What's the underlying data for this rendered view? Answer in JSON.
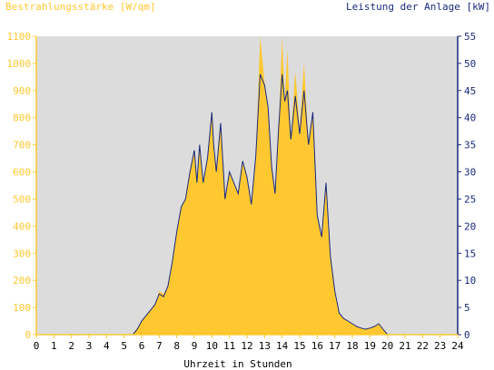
{
  "chart_data": {
    "type": "area",
    "left_axis_label": "Bestrahlungsstärke [W/qm]",
    "right_axis_label": "Leistung der Anlage [kW]",
    "xlabel": "Uhrzeit in Stunden",
    "xlim": [
      0,
      24
    ],
    "x_ticks": [
      0,
      1,
      2,
      3,
      4,
      5,
      6,
      7,
      8,
      9,
      10,
      11,
      12,
      13,
      14,
      15,
      16,
      17,
      18,
      19,
      20,
      21,
      22,
      23,
      24
    ],
    "ylim_left": [
      0,
      1100
    ],
    "y_ticks_left": [
      0,
      100,
      200,
      300,
      400,
      500,
      600,
      700,
      800,
      900,
      1000,
      1100
    ],
    "ylim_right": [
      0,
      55
    ],
    "y_ticks_right": [
      0,
      5,
      10,
      15,
      20,
      25,
      30,
      35,
      40,
      45,
      50,
      55
    ],
    "grid": false,
    "colors": {
      "irradiance": "#ffc830",
      "power": "#1a2a7a",
      "plot_bg": "#dcdcdc",
      "left_axis_text": "#ffc830",
      "right_axis_text": "#1a2a7a",
      "x_axis_text": "#000000"
    },
    "series": [
      {
        "name": "Bestrahlungsstärke [W/qm]",
        "axis": "left",
        "x": [
          0,
          5.5,
          5.75,
          6.0,
          6.25,
          6.5,
          6.75,
          7.0,
          7.25,
          7.5,
          7.75,
          8.0,
          8.25,
          8.5,
          8.75,
          9.0,
          9.15,
          9.3,
          9.5,
          9.75,
          10.0,
          10.1,
          10.25,
          10.5,
          10.75,
          11.0,
          11.25,
          11.5,
          11.75,
          12.0,
          12.25,
          12.5,
          12.75,
          13.0,
          13.2,
          13.4,
          13.6,
          13.8,
          14.0,
          14.15,
          14.3,
          14.5,
          14.75,
          15.0,
          15.25,
          15.5,
          15.75,
          16.0,
          16.25,
          16.5,
          16.75,
          17.0,
          17.25,
          17.5,
          17.75,
          18.0,
          18.25,
          18.5,
          18.75,
          19.0,
          19.25,
          19.5,
          19.75,
          20.0,
          24
        ],
        "y": [
          0,
          0,
          20,
          50,
          70,
          90,
          110,
          160,
          150,
          180,
          270,
          380,
          470,
          500,
          600,
          680,
          560,
          700,
          560,
          650,
          820,
          700,
          600,
          780,
          500,
          600,
          560,
          520,
          640,
          580,
          480,
          650,
          1100,
          930,
          840,
          620,
          520,
          760,
          1100,
          860,
          1050,
          720,
          970,
          760,
          1000,
          700,
          820,
          440,
          360,
          560,
          290,
          160,
          80,
          60,
          50,
          40,
          30,
          25,
          20,
          25,
          30,
          40,
          20,
          0,
          0
        ]
      },
      {
        "name": "Leistung der Anlage [kW]",
        "axis": "right",
        "x": [
          0,
          5.5,
          5.75,
          6.0,
          6.25,
          6.5,
          6.75,
          7.0,
          7.25,
          7.5,
          7.75,
          8.0,
          8.25,
          8.5,
          8.75,
          9.0,
          9.15,
          9.3,
          9.5,
          9.75,
          10.0,
          10.1,
          10.25,
          10.5,
          10.75,
          11.0,
          11.25,
          11.5,
          11.75,
          12.0,
          12.25,
          12.5,
          12.75,
          13.0,
          13.2,
          13.4,
          13.6,
          13.8,
          14.0,
          14.15,
          14.3,
          14.5,
          14.75,
          15.0,
          15.25,
          15.5,
          15.75,
          16.0,
          16.25,
          16.5,
          16.75,
          17.0,
          17.25,
          17.5,
          17.75,
          18.0,
          18.25,
          18.5,
          18.75,
          19.0,
          19.25,
          19.5,
          19.75,
          20.0,
          24
        ],
        "y": [
          0,
          0,
          1,
          2.5,
          3.5,
          4.5,
          5.5,
          7.5,
          7,
          9,
          13.5,
          19,
          23.5,
          25,
          30,
          34,
          28,
          35,
          28,
          32.5,
          41,
          35,
          30,
          39,
          25,
          30,
          28,
          26,
          32,
          29,
          24,
          33,
          48,
          46,
          42,
          31,
          26,
          38,
          48,
          43,
          45,
          36,
          44,
          37,
          45,
          35,
          41,
          22,
          18,
          28,
          14.5,
          8,
          4,
          3,
          2.5,
          2,
          1.5,
          1.2,
          1,
          1.2,
          1.5,
          2,
          1,
          0,
          0
        ]
      }
    ]
  }
}
